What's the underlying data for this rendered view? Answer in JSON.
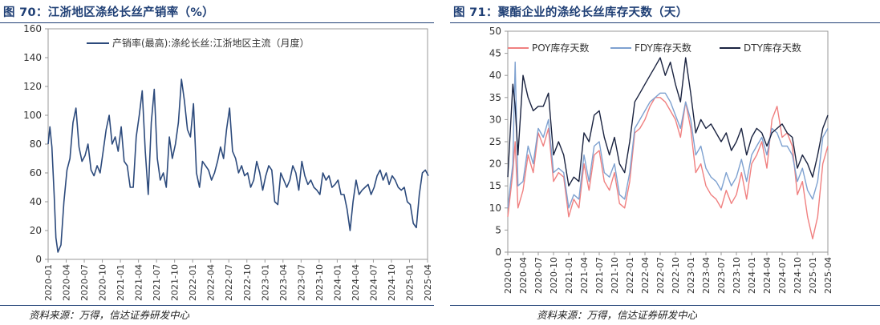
{
  "figures": [
    {
      "title": "图 70：江浙地区涤纶长丝产销率（%）",
      "source": "资料来源：万得，信达证券研发中心"
    },
    {
      "title": "图 71：聚酯企业的涤纶长丝库存天数（天）",
      "source": "资料来源：万得，信达证券研发中心"
    }
  ],
  "chart_data": [
    {
      "type": "line",
      "title": "",
      "xlabel": "",
      "ylabel": "",
      "ylim": [
        0,
        160
      ],
      "yticks": [
        0,
        20,
        40,
        60,
        80,
        100,
        120,
        140,
        160
      ],
      "xlim": [
        "2020-01",
        "2025-04"
      ],
      "xticks": [
        "2020-01",
        "2020-04",
        "2020-07",
        "2020-10",
        "2021-01",
        "2021-04",
        "2021-07",
        "2021-10",
        "2022-01",
        "2022-04",
        "2022-07",
        "2022-10",
        "2023-01",
        "2023-04",
        "2023-07",
        "2023-10",
        "2024-01",
        "2024-04",
        "2024-07",
        "2024-10",
        "2025-01",
        "2025-04"
      ],
      "grid": false,
      "legend_position": "top-center",
      "series": [
        {
          "name": "产销率(最高):涤纶长丝:江浙地区主流（月度）",
          "color": "#2c4a7c",
          "x": [
            "2020-01-01",
            "2020-01-10",
            "2020-01-20",
            "2020-02-01",
            "2020-02-10",
            "2020-02-20",
            "2020-03-05",
            "2020-03-20",
            "2020-04-05",
            "2020-04-20",
            "2020-05-05",
            "2020-05-20",
            "2020-06-05",
            "2020-06-20",
            "2020-07-05",
            "2020-07-20",
            "2020-08-05",
            "2020-08-20",
            "2020-09-05",
            "2020-09-20",
            "2020-10-05",
            "2020-10-20",
            "2020-11-05",
            "2020-11-20",
            "2020-12-05",
            "2020-12-20",
            "2021-01-05",
            "2021-01-20",
            "2021-02-05",
            "2021-02-20",
            "2021-03-05",
            "2021-03-20",
            "2021-04-05",
            "2021-04-20",
            "2021-05-05",
            "2021-05-20",
            "2021-06-05",
            "2021-06-20",
            "2021-07-05",
            "2021-07-20",
            "2021-08-05",
            "2021-08-20",
            "2021-09-05",
            "2021-09-20",
            "2021-10-05",
            "2021-10-20",
            "2021-11-05",
            "2021-11-20",
            "2021-12-05",
            "2021-12-20",
            "2022-01-05",
            "2022-01-20",
            "2022-02-05",
            "2022-02-20",
            "2022-03-05",
            "2022-03-20",
            "2022-04-05",
            "2022-04-20",
            "2022-05-05",
            "2022-05-20",
            "2022-06-05",
            "2022-06-20",
            "2022-07-05",
            "2022-07-20",
            "2022-08-05",
            "2022-08-20",
            "2022-09-05",
            "2022-09-20",
            "2022-10-05",
            "2022-10-20",
            "2022-11-05",
            "2022-11-20",
            "2022-12-05",
            "2022-12-20",
            "2023-01-05",
            "2023-01-20",
            "2023-02-05",
            "2023-02-20",
            "2023-03-05",
            "2023-03-20",
            "2023-04-05",
            "2023-04-20",
            "2023-05-05",
            "2023-05-20",
            "2023-06-05",
            "2023-06-20",
            "2023-07-05",
            "2023-07-20",
            "2023-08-05",
            "2023-08-20",
            "2023-09-05",
            "2023-09-20",
            "2023-10-05",
            "2023-10-20",
            "2023-11-05",
            "2023-11-20",
            "2023-12-05",
            "2023-12-20",
            "2024-01-05",
            "2024-01-20",
            "2024-02-05",
            "2024-02-20",
            "2024-03-05",
            "2024-03-20",
            "2024-04-05",
            "2024-04-20",
            "2024-05-05",
            "2024-05-20",
            "2024-06-05",
            "2024-06-20",
            "2024-07-05",
            "2024-07-20",
            "2024-08-05",
            "2024-08-20",
            "2024-09-05",
            "2024-09-20",
            "2024-10-05",
            "2024-10-20",
            "2024-11-05",
            "2024-11-20",
            "2024-12-05",
            "2024-12-20",
            "2025-01-05",
            "2025-01-20",
            "2025-02-05",
            "2025-02-20",
            "2025-03-05",
            "2025-03-20",
            "2025-04-05"
          ],
          "values": [
            80,
            92,
            78,
            45,
            15,
            5,
            10,
            40,
            62,
            70,
            95,
            105,
            78,
            68,
            72,
            80,
            62,
            58,
            65,
            60,
            75,
            90,
            100,
            80,
            85,
            75,
            92,
            68,
            65,
            50,
            50,
            85,
            100,
            117,
            75,
            45,
            95,
            118,
            70,
            55,
            60,
            50,
            85,
            70,
            80,
            95,
            125,
            110,
            90,
            85,
            108,
            60,
            50,
            68,
            65,
            62,
            55,
            60,
            68,
            78,
            70,
            90,
            105,
            75,
            70,
            60,
            65,
            58,
            60,
            50,
            55,
            68,
            60,
            48,
            58,
            65,
            62,
            40,
            38,
            60,
            55,
            50,
            55,
            65,
            60,
            48,
            68,
            58,
            52,
            55,
            50,
            48,
            45,
            60,
            55,
            58,
            50,
            52,
            55,
            45,
            45,
            35,
            20,
            40,
            55,
            45,
            48,
            50,
            52,
            45,
            50,
            58,
            62,
            55,
            60,
            52,
            58,
            55,
            50,
            48,
            50,
            40,
            38,
            25,
            22,
            45,
            60,
            62,
            58
          ]
        }
      ]
    },
    {
      "type": "line",
      "title": "",
      "xlabel": "",
      "ylabel": "",
      "ylim": [
        0,
        50
      ],
      "yticks": [
        0,
        5,
        10,
        15,
        20,
        25,
        30,
        35,
        40,
        45,
        50
      ],
      "xlim": [
        "2020-01",
        "2025-04"
      ],
      "xticks": [
        "2020-01",
        "2020-04",
        "2020-07",
        "2020-10",
        "2021-01",
        "2021-04",
        "2021-07",
        "2021-10",
        "2022-01",
        "2022-04",
        "2022-07",
        "2022-10",
        "2023-01",
        "2023-04",
        "2023-07",
        "2023-10",
        "2024-01",
        "2024-04",
        "2024-07",
        "2024-10",
        "2025-01",
        "2025-04"
      ],
      "grid": false,
      "legend_position": "top",
      "series": [
        {
          "name": "POY库存天数",
          "color": "#f08080",
          "x": [
            "2020-01-01",
            "2020-02-01",
            "2020-02-15",
            "2020-03-01",
            "2020-04-01",
            "2020-05-01",
            "2020-06-01",
            "2020-07-01",
            "2020-08-01",
            "2020-09-01",
            "2020-10-01",
            "2020-11-01",
            "2020-12-01",
            "2021-01-01",
            "2021-02-01",
            "2021-03-01",
            "2021-04-01",
            "2021-05-01",
            "2021-06-01",
            "2021-07-01",
            "2021-08-01",
            "2021-09-01",
            "2021-10-01",
            "2021-11-01",
            "2021-12-01",
            "2022-01-01",
            "2022-02-01",
            "2022-03-01",
            "2022-04-01",
            "2022-05-01",
            "2022-06-01",
            "2022-07-01",
            "2022-08-01",
            "2022-09-01",
            "2022-10-01",
            "2022-11-01",
            "2022-12-01",
            "2023-01-01",
            "2023-02-01",
            "2023-03-01",
            "2023-04-01",
            "2023-05-01",
            "2023-06-01",
            "2023-07-01",
            "2023-08-01",
            "2023-09-01",
            "2023-10-01",
            "2023-11-01",
            "2023-12-01",
            "2024-01-01",
            "2024-02-01",
            "2024-03-01",
            "2024-04-01",
            "2024-05-01",
            "2024-06-01",
            "2024-07-01",
            "2024-08-01",
            "2024-09-01",
            "2024-10-01",
            "2024-11-01",
            "2024-12-01",
            "2025-01-01",
            "2025-02-01",
            "2025-03-01",
            "2025-04-01"
          ],
          "values": [
            8,
            18,
            25,
            10,
            14,
            22,
            18,
            27,
            24,
            28,
            16,
            18,
            17,
            8,
            12,
            10,
            20,
            14,
            22,
            23,
            16,
            14,
            18,
            11,
            10,
            16,
            27,
            28,
            30,
            33,
            35,
            35,
            34,
            32,
            30,
            26,
            34,
            28,
            18,
            20,
            15,
            13,
            12,
            10,
            14,
            11,
            13,
            18,
            12,
            20,
            22,
            25,
            19,
            30,
            33,
            26,
            27,
            24,
            13,
            16,
            8,
            3,
            8,
            20,
            24
          ]
        },
        {
          "name": "FDY库存天数",
          "color": "#7ea1d0",
          "x": [
            "2020-01-01",
            "2020-02-01",
            "2020-02-15",
            "2020-03-01",
            "2020-04-01",
            "2020-05-01",
            "2020-06-01",
            "2020-07-01",
            "2020-08-01",
            "2020-09-01",
            "2020-10-01",
            "2020-11-01",
            "2020-12-01",
            "2021-01-01",
            "2021-02-01",
            "2021-03-01",
            "2021-04-01",
            "2021-05-01",
            "2021-06-01",
            "2021-07-01",
            "2021-08-01",
            "2021-09-01",
            "2021-10-01",
            "2021-11-01",
            "2021-12-01",
            "2022-01-01",
            "2022-02-01",
            "2022-03-01",
            "2022-04-01",
            "2022-05-01",
            "2022-06-01",
            "2022-07-01",
            "2022-08-01",
            "2022-09-01",
            "2022-10-01",
            "2022-11-01",
            "2022-12-01",
            "2023-01-01",
            "2023-02-01",
            "2023-03-01",
            "2023-04-01",
            "2023-05-01",
            "2023-06-01",
            "2023-07-01",
            "2023-08-01",
            "2023-09-01",
            "2023-10-01",
            "2023-11-01",
            "2023-12-01",
            "2024-01-01",
            "2024-02-01",
            "2024-03-01",
            "2024-04-01",
            "2024-05-01",
            "2024-06-01",
            "2024-07-01",
            "2024-08-01",
            "2024-09-01",
            "2024-10-01",
            "2024-11-01",
            "2024-12-01",
            "2025-01-01",
            "2025-02-01",
            "2025-03-01",
            "2025-04-01"
          ],
          "values": [
            10,
            20,
            43,
            15,
            16,
            24,
            20,
            28,
            26,
            30,
            18,
            19,
            18,
            10,
            13,
            12,
            22,
            16,
            24,
            25,
            18,
            17,
            20,
            13,
            12,
            18,
            28,
            30,
            32,
            34,
            35,
            36,
            36,
            34,
            31,
            28,
            34,
            30,
            22,
            24,
            19,
            17,
            16,
            14,
            18,
            15,
            17,
            21,
            16,
            22,
            24,
            26,
            22,
            28,
            27,
            24,
            24,
            22,
            16,
            19,
            14,
            12,
            16,
            26,
            28
          ]
        },
        {
          "name": "DTY库存天数",
          "color": "#1a2340",
          "x": [
            "2020-01-01",
            "2020-02-01",
            "2020-02-15",
            "2020-03-01",
            "2020-04-01",
            "2020-05-01",
            "2020-06-01",
            "2020-07-01",
            "2020-08-01",
            "2020-09-01",
            "2020-10-01",
            "2020-11-01",
            "2020-12-01",
            "2021-01-01",
            "2021-02-01",
            "2021-03-01",
            "2021-04-01",
            "2021-05-01",
            "2021-06-01",
            "2021-07-01",
            "2021-08-01",
            "2021-09-01",
            "2021-10-01",
            "2021-11-01",
            "2021-12-01",
            "2022-01-01",
            "2022-02-01",
            "2022-03-01",
            "2022-04-01",
            "2022-05-01",
            "2022-06-01",
            "2022-07-01",
            "2022-08-01",
            "2022-09-01",
            "2022-10-01",
            "2022-11-01",
            "2022-12-01",
            "2023-01-01",
            "2023-02-01",
            "2023-03-01",
            "2023-04-01",
            "2023-05-01",
            "2023-06-01",
            "2023-07-01",
            "2023-08-01",
            "2023-09-01",
            "2023-10-01",
            "2023-11-01",
            "2023-12-01",
            "2024-01-01",
            "2024-02-01",
            "2024-03-01",
            "2024-04-01",
            "2024-05-01",
            "2024-06-01",
            "2024-07-01",
            "2024-08-01",
            "2024-09-01",
            "2024-10-01",
            "2024-11-01",
            "2024-12-01",
            "2025-01-01",
            "2025-02-01",
            "2025-03-01",
            "2025-04-01"
          ],
          "values": [
            17,
            38,
            33,
            22,
            40,
            35,
            32,
            33,
            33,
            36,
            22,
            25,
            22,
            15,
            17,
            16,
            27,
            25,
            31,
            32,
            26,
            22,
            26,
            20,
            18,
            25,
            34,
            36,
            38,
            40,
            42,
            44,
            40,
            43,
            38,
            34,
            44,
            36,
            27,
            30,
            28,
            29,
            27,
            25,
            27,
            23,
            25,
            28,
            22,
            26,
            28,
            27,
            24,
            27,
            28,
            29,
            27,
            26,
            19,
            22,
            20,
            17,
            22,
            28,
            31
          ]
        }
      ]
    }
  ]
}
